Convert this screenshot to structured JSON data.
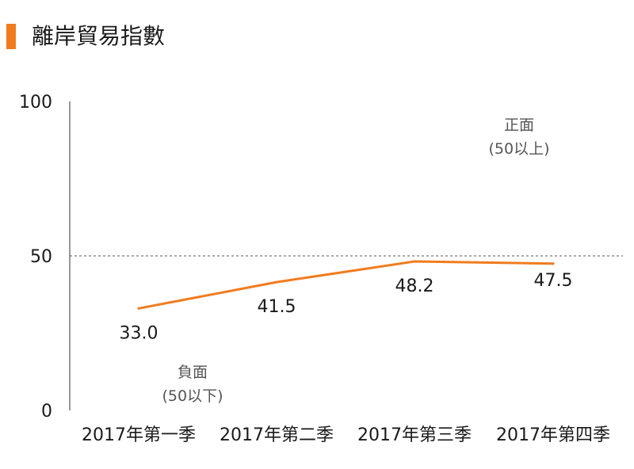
{
  "title": "離岸貿易指數",
  "colors": {
    "accent": "#f07c1e",
    "line": "#f07c1e",
    "axis": "#333333",
    "reference": "#555555"
  },
  "chart_data": {
    "type": "line",
    "title": "離岸貿易指數",
    "categories": [
      "2017年第一季",
      "2017年第二季",
      "2017年第三季",
      "2017年第四季"
    ],
    "series": [
      {
        "values": [
          33.0,
          41.5,
          48.2,
          47.5
        ],
        "labels": [
          "33.0",
          "41.5",
          "48.2",
          "47.5"
        ]
      }
    ],
    "ylim": [
      0,
      100
    ],
    "yticks": [
      "100",
      "50",
      "0"
    ],
    "reference_line": 50,
    "annotations": {
      "above": [
        "正面",
        "(50以上)"
      ],
      "below": [
        "負面",
        "(50以下)"
      ]
    },
    "grid": false,
    "legend": "none"
  }
}
